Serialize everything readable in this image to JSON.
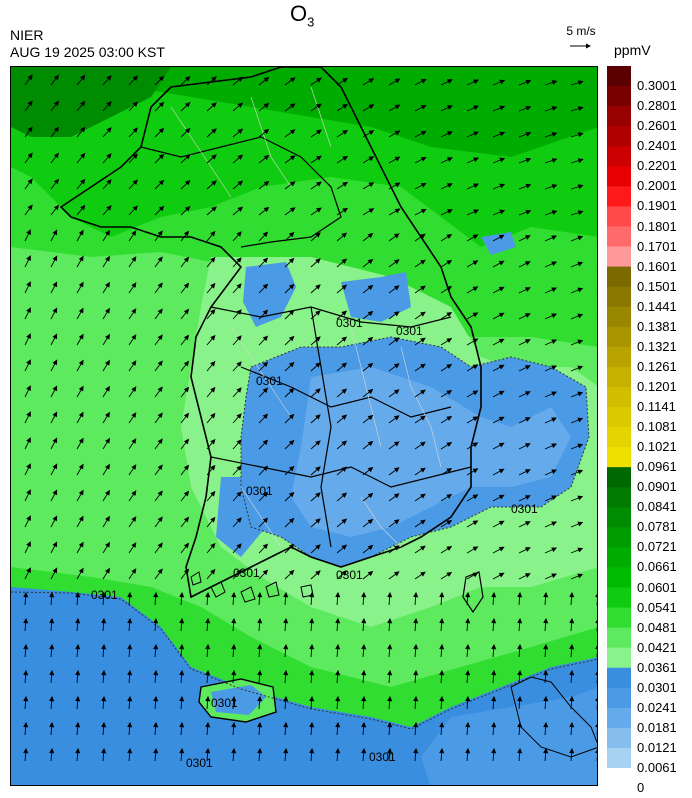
{
  "header": {
    "agency": "NIER",
    "datetime": "AUG 19 2025 03:00 KST",
    "title_main": "O",
    "title_sub": "3"
  },
  "wind_scale": {
    "label": "5 m/s"
  },
  "legend": {
    "unit": "ppmV",
    "labels": [
      "0.3001",
      "0.2801",
      "0.2601",
      "0.2401",
      "0.2201",
      "0.2001",
      "0.1901",
      "0.1801",
      "0.1701",
      "0.1601",
      "0.1501",
      "0.1441",
      "0.1381",
      "0.1321",
      "0.1261",
      "0.1201",
      "0.1141",
      "0.1081",
      "0.1021",
      "0.0961",
      "0.0901",
      "0.0841",
      "0.0781",
      "0.0721",
      "0.0661",
      "0.0601",
      "0.0541",
      "0.0481",
      "0.0421",
      "0.0361",
      "0.0301",
      "0.0241",
      "0.0181",
      "0.0121",
      "0.0061",
      "0"
    ],
    "colors": [
      "#5a0000",
      "#7a0000",
      "#990000",
      "#b00000",
      "#cc0000",
      "#e60000",
      "#ff1a1a",
      "#ff4a4a",
      "#ff6b6b",
      "#ff9a9a",
      "#7a6a00",
      "#8a7800",
      "#9a8700",
      "#a99500",
      "#b8a300",
      "#c6b000",
      "#d2bd00",
      "#dcc900",
      "#e6d400",
      "#f0e000",
      "#006800",
      "#007a00",
      "#008c00",
      "#009c00",
      "#00ac00",
      "#00bc00",
      "#10cc10",
      "#30dd30",
      "#5eea5e",
      "#8af28a",
      "#3a8ee0",
      "#4a9ae6",
      "#65aaea",
      "#85bdee",
      "#a8d2f2"
    ]
  },
  "contours": {
    "labels": [
      "0301",
      "0301",
      "0301",
      "0301",
      "0301",
      "0301",
      "0301",
      "0301",
      "0301",
      "0301",
      "0301"
    ]
  },
  "colors": {
    "land_border": "#000000",
    "district_line": "#d8d8d8",
    "contour": "#333333"
  }
}
